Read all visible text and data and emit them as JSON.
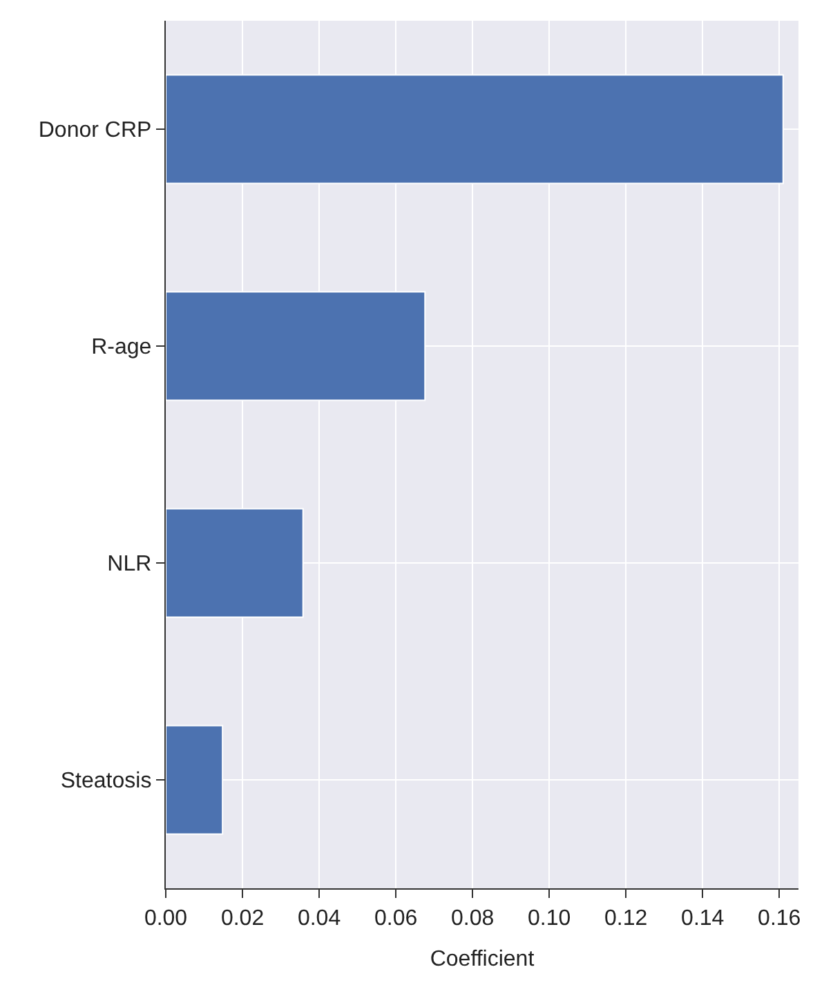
{
  "chart_data": {
    "type": "bar",
    "orientation": "horizontal",
    "xlabel": "Coefficient",
    "categories": [
      "Donor CRP",
      "R-age",
      "NLR",
      "Steatosis"
    ],
    "values": [
      0.161,
      0.0676,
      0.0358,
      0.0148
    ],
    "color": "#4c72b0",
    "xlim": [
      0,
      0.165
    ],
    "xticks": [
      {
        "value": 0,
        "label": "0.00"
      },
      {
        "value": 0.02,
        "label": "0.02"
      },
      {
        "value": 0.04,
        "label": "0.04"
      },
      {
        "value": 0.06,
        "label": "0.06"
      },
      {
        "value": 0.08,
        "label": "0.08"
      },
      {
        "value": 0.1,
        "label": "0.10"
      },
      {
        "value": 0.12,
        "label": "0.12"
      },
      {
        "value": 0.14,
        "label": "0.14"
      },
      {
        "value": 0.16,
        "label": "0.16"
      }
    ],
    "grid": true
  }
}
